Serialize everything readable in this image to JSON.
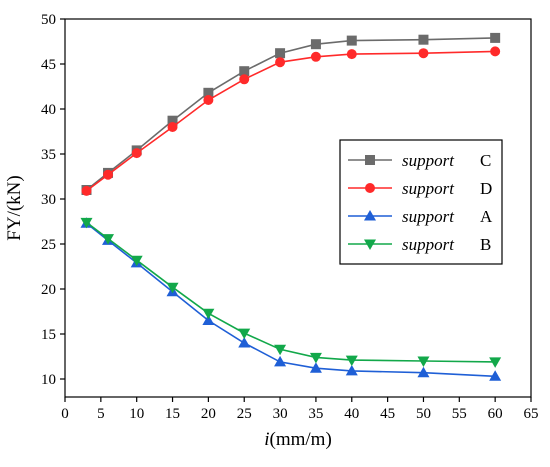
{
  "chart_data": {
    "type": "line",
    "title": "",
    "xlabel_italic": "i",
    "xlabel_rest": "(mm/m)",
    "ylabel": "FY/(kN)",
    "xlim": [
      0,
      65
    ],
    "ylim": [
      8,
      50
    ],
    "xticks": [
      0,
      5,
      10,
      15,
      20,
      25,
      30,
      35,
      40,
      45,
      50,
      55,
      60,
      65
    ],
    "yticks": [
      10,
      15,
      20,
      25,
      30,
      35,
      40,
      45,
      50
    ],
    "grid": false,
    "legend_position": "right",
    "x": [
      3,
      6,
      10,
      15,
      20,
      25,
      30,
      35,
      40,
      50,
      60
    ],
    "series": [
      {
        "name_italic": "support",
        "name_letter": "C",
        "color": "#6b6b6b",
        "marker": "square",
        "values": [
          31.0,
          32.9,
          35.4,
          38.7,
          41.8,
          44.2,
          46.2,
          47.2,
          47.6,
          47.7,
          47.9
        ]
      },
      {
        "name_italic": "support",
        "name_letter": "D",
        "color": "#ff2a2a",
        "marker": "circle",
        "values": [
          30.9,
          32.7,
          35.1,
          38.0,
          41.0,
          43.3,
          45.2,
          45.8,
          46.1,
          46.2,
          46.4
        ]
      },
      {
        "name_italic": "support",
        "name_letter": "A",
        "color": "#1f5fd6",
        "marker": "triangle-up",
        "values": [
          27.3,
          25.4,
          22.9,
          19.7,
          16.5,
          14.0,
          11.9,
          11.2,
          10.9,
          10.7,
          10.3
        ]
      },
      {
        "name_italic": "support",
        "name_letter": "B",
        "color": "#12a84a",
        "marker": "triangle-down",
        "values": [
          27.4,
          25.6,
          23.2,
          20.2,
          17.3,
          15.1,
          13.3,
          12.4,
          12.1,
          12.0,
          11.9
        ]
      }
    ]
  }
}
